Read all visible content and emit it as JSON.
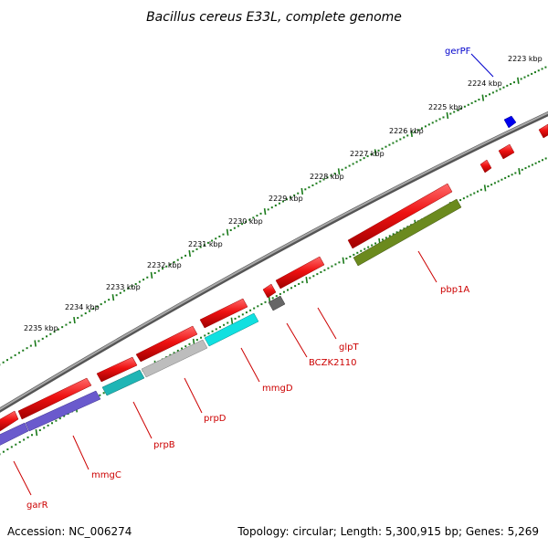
{
  "title": "Bacillus cereus E33L, complete genome",
  "footer": {
    "accession": "Accession: NC_006274",
    "summary": "Topology: circular; Length: 5,300,915 bp; Genes: 5,269"
  },
  "colors": {
    "backbone": "#8c8c8c",
    "tick": "#1a7a1a",
    "label_red": "#cc0000",
    "label_blue": "#0000cc",
    "forward_gene": "#ee1111",
    "pbp1A": "#6b8a1e",
    "mmgC": "#6a5acd",
    "prpB": "#1fb5b5",
    "prpD": "#bdbdbd",
    "mmgD": "#11e0e0",
    "BCZK2110": "#666666",
    "gerPF": "#0000ee"
  },
  "scale_ticks": [
    "2223 kbp",
    "2224 kbp",
    "2225 kbp",
    "2226 kbp",
    "2227 kbp",
    "2228 kbp",
    "2229 kbp",
    "2230 kbp",
    "2231 kbp",
    "2232 kbp",
    "2233 kbp",
    "2234 kbp",
    "2235 kbp"
  ],
  "genes": [
    {
      "name": "gerPF",
      "strand": "forward",
      "color": "gerPF",
      "labeled": true
    },
    {
      "name": "pbp1A",
      "strand": "reverse",
      "color": "pbp1A",
      "labeled": true
    },
    {
      "name": "glpT",
      "strand": "forward",
      "color": "forward_gene",
      "labeled": true
    },
    {
      "name": "BCZK2110",
      "strand": "reverse",
      "color": "BCZK2110",
      "labeled": true
    },
    {
      "name": "mmgD",
      "strand": "reverse",
      "color": "mmgD",
      "labeled": true
    },
    {
      "name": "prpD",
      "strand": "reverse",
      "color": "prpD",
      "labeled": true
    },
    {
      "name": "prpB",
      "strand": "reverse",
      "color": "prpB",
      "labeled": true
    },
    {
      "name": "mmgC",
      "strand": "reverse",
      "color": "mmgC",
      "labeled": true
    },
    {
      "name": "garR",
      "strand": "reverse",
      "color": "mmgC",
      "labeled": true
    }
  ]
}
